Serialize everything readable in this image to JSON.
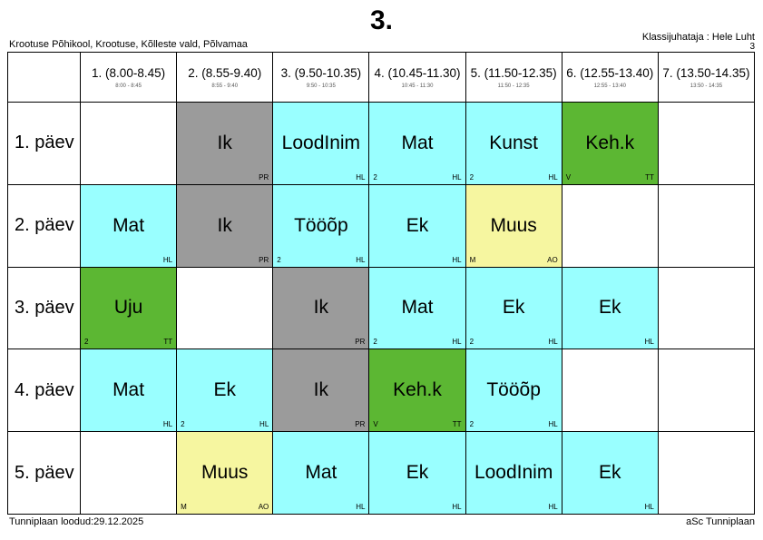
{
  "page": {
    "title": "3.",
    "school": "Krootuse Põhikool, Krootuse, Kõlleste vald, Põlvamaa",
    "teacher_label": "Klassijuhataja : Hele Luht",
    "class_number": "3",
    "footer_left": "Tunniplaan loodud:29.12.2025",
    "footer_right": "aSc Tunniplaan"
  },
  "colors": {
    "cyan": "#99FFFF",
    "gray": "#9B9B9B",
    "green": "#5CB733",
    "yellow": "#F6F6A0",
    "white": "#FFFFFF"
  },
  "periods": [
    {
      "label": "1. (8.00-8.45)",
      "time": "8:00 - 8:45"
    },
    {
      "label": "2. (8.55-9.40)",
      "time": "8:55 - 9:40"
    },
    {
      "label": "3. (9.50-10.35)",
      "time": "9:50 - 10:35"
    },
    {
      "label": "4. (10.45-11.30)",
      "time": "10:45 - 11:30"
    },
    {
      "label": "5. (11.50-12.35)",
      "time": "11:50 - 12:35"
    },
    {
      "label": "6. (12.55-13.40)",
      "time": "12:55 - 13:40"
    },
    {
      "label": "7. (13.50-14.35)",
      "time": "13:50 - 14:35"
    }
  ],
  "days": [
    {
      "label": "1. päev",
      "lessons": [
        null,
        {
          "subject": "Ik",
          "color": "gray",
          "bottom_left": "",
          "bottom_right": "PR"
        },
        {
          "subject": "LoodInim",
          "color": "cyan",
          "bottom_left": "",
          "bottom_right": "HL"
        },
        {
          "subject": "Mat",
          "color": "cyan",
          "bottom_left": "2",
          "bottom_right": "HL"
        },
        {
          "subject": "Kunst",
          "color": "cyan",
          "bottom_left": "2",
          "bottom_right": "HL"
        },
        {
          "subject": "Keh.k",
          "color": "green",
          "bottom_left": "V",
          "bottom_right": "TT"
        },
        null
      ]
    },
    {
      "label": "2. päev",
      "lessons": [
        {
          "subject": "Mat",
          "color": "cyan",
          "bottom_left": "",
          "bottom_right": "HL"
        },
        {
          "subject": "Ik",
          "color": "gray",
          "bottom_left": "",
          "bottom_right": "PR"
        },
        {
          "subject": "Tööõp",
          "color": "cyan",
          "bottom_left": "2",
          "bottom_right": "HL"
        },
        {
          "subject": "Ek",
          "color": "cyan",
          "bottom_left": "",
          "bottom_right": "HL"
        },
        {
          "subject": "Muus",
          "color": "yellow",
          "bottom_left": "M",
          "bottom_right": "AO"
        },
        null,
        null
      ]
    },
    {
      "label": "3. päev",
      "lessons": [
        {
          "subject": "Uju",
          "color": "green",
          "bottom_left": "2",
          "bottom_right": "TT"
        },
        null,
        {
          "subject": "Ik",
          "color": "gray",
          "bottom_left": "",
          "bottom_right": "PR"
        },
        {
          "subject": "Mat",
          "color": "cyan",
          "bottom_left": "2",
          "bottom_right": "HL"
        },
        {
          "subject": "Ek",
          "color": "cyan",
          "bottom_left": "2",
          "bottom_right": "HL"
        },
        {
          "subject": "Ek",
          "color": "cyan",
          "bottom_left": "",
          "bottom_right": "HL"
        },
        null
      ]
    },
    {
      "label": "4. päev",
      "lessons": [
        {
          "subject": "Mat",
          "color": "cyan",
          "bottom_left": "",
          "bottom_right": "HL"
        },
        {
          "subject": "Ek",
          "color": "cyan",
          "bottom_left": "2",
          "bottom_right": "HL"
        },
        {
          "subject": "Ik",
          "color": "gray",
          "bottom_left": "",
          "bottom_right": "PR"
        },
        {
          "subject": "Keh.k",
          "color": "green",
          "bottom_left": "V",
          "bottom_right": "TT"
        },
        {
          "subject": "Tööõp",
          "color": "cyan",
          "bottom_left": "2",
          "bottom_right": "HL"
        },
        null,
        null
      ]
    },
    {
      "label": "5. päev",
      "lessons": [
        null,
        {
          "subject": "Muus",
          "color": "yellow",
          "bottom_left": "M",
          "bottom_right": "AO"
        },
        {
          "subject": "Mat",
          "color": "cyan",
          "bottom_left": "",
          "bottom_right": "HL"
        },
        {
          "subject": "Ek",
          "color": "cyan",
          "bottom_left": "",
          "bottom_right": "HL"
        },
        {
          "subject": "LoodInim",
          "color": "cyan",
          "bottom_left": "",
          "bottom_right": "HL"
        },
        {
          "subject": "Ek",
          "color": "cyan",
          "bottom_left": "",
          "bottom_right": "HL"
        },
        null
      ]
    }
  ]
}
